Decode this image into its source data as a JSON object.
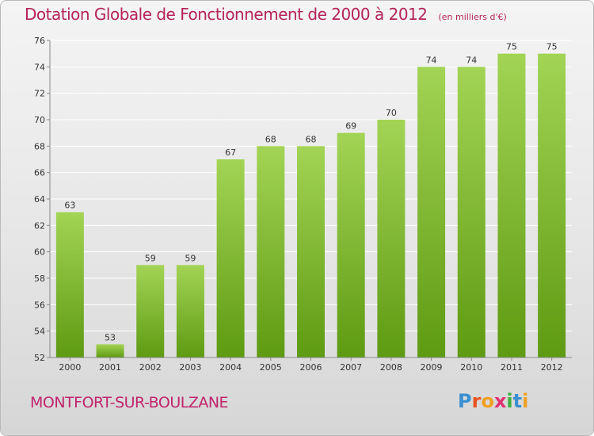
{
  "header": {
    "title": "Dotation Globale de Fonctionnement de 2000 à 2012",
    "unit": "(en milliers d'€)"
  },
  "footer": {
    "commune": "MONTFORT-SUR-BOULZANE",
    "logo": {
      "letters": [
        "P",
        "r",
        "o",
        "x",
        "i",
        "t",
        "i"
      ],
      "colors": [
        "#3a8fd0",
        "#e8541f",
        "#f0a020",
        "#e03070",
        "#3cae3c",
        "#3a8fd0",
        "#f0a020"
      ]
    }
  },
  "chart_data": {
    "type": "bar",
    "categories": [
      "2000",
      "2001",
      "2002",
      "2003",
      "2004",
      "2005",
      "2006",
      "2007",
      "2008",
      "2009",
      "2010",
      "2011",
      "2012"
    ],
    "values": [
      63,
      53,
      59,
      59,
      67,
      68,
      68,
      69,
      70,
      74,
      74,
      75,
      75
    ],
    "ylim": [
      52,
      76
    ],
    "yticks": [
      52,
      54,
      56,
      58,
      60,
      62,
      64,
      66,
      68,
      70,
      72,
      74,
      76
    ],
    "grid": true,
    "colors": {
      "bar_light": "#a3d455",
      "bar_dark": "#5e9a12",
      "grid": "#ffffff",
      "text": "#333333"
    }
  }
}
